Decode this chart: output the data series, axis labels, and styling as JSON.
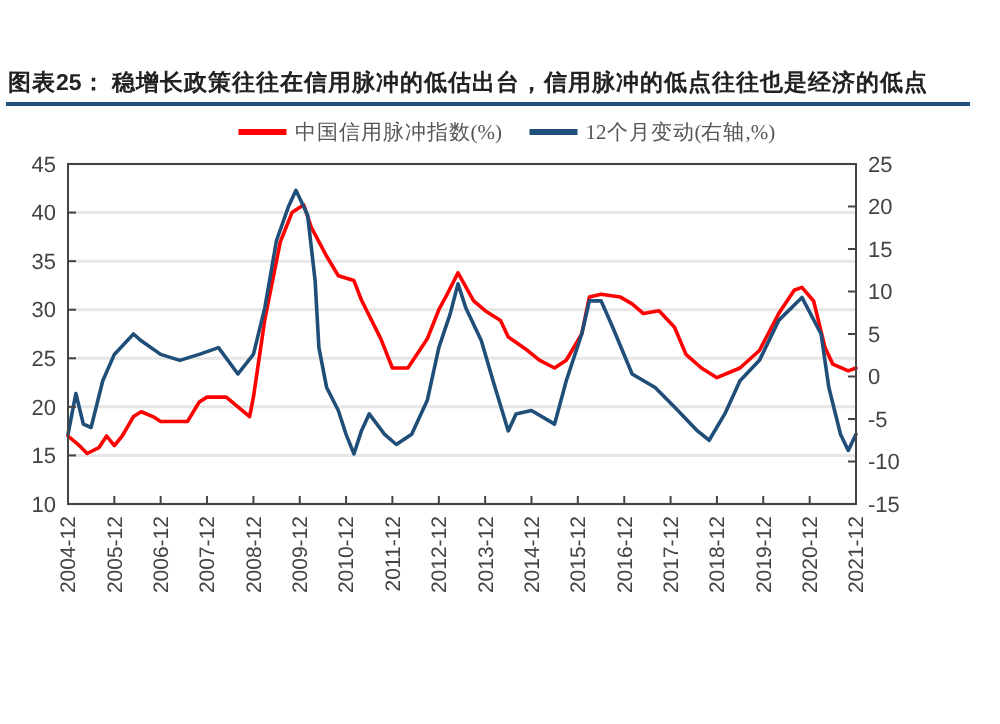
{
  "chart_data": {
    "type": "line",
    "title": "图表25： 稳增长政策往往在信用脉冲的低估出台，信用脉冲的低点往往也是经济的低点",
    "series": [
      {
        "name": "中国信用脉冲指数(%)",
        "color": "#ff0000",
        "x": [
          "2004-12",
          "2005-03",
          "2005-05",
          "2005-08",
          "2005-10",
          "2005-12",
          "2006-02",
          "2006-05",
          "2006-07",
          "2006-10",
          "2006-12",
          "2007-03",
          "2007-07",
          "2007-10",
          "2007-12",
          "2008-05",
          "2008-08",
          "2008-11",
          "2008-12",
          "2009-03",
          "2009-07",
          "2009-10",
          "2010-01",
          "2010-03",
          "2010-07",
          "2010-10",
          "2011-02",
          "2011-04",
          "2011-09",
          "2011-12",
          "2012-04",
          "2012-09",
          "2012-12",
          "2013-02",
          "2013-05",
          "2013-09",
          "2013-12",
          "2014-04",
          "2014-06",
          "2014-11",
          "2015-02",
          "2015-06",
          "2015-09",
          "2016-01",
          "2016-03",
          "2016-06",
          "2016-11",
          "2017-02",
          "2017-05",
          "2017-09",
          "2018-01",
          "2018-04",
          "2018-08",
          "2018-12",
          "2019-06",
          "2019-11",
          "2020-04",
          "2020-08",
          "2020-10",
          "2021-01",
          "2021-04",
          "2021-06",
          "2021-10",
          "2021-12"
        ],
        "values": [
          17,
          16,
          15.2,
          15.8,
          17,
          16,
          17,
          19,
          19.5,
          19,
          18.5,
          18.5,
          18.5,
          20.5,
          21,
          21,
          20,
          19,
          21,
          29,
          37,
          40,
          40.8,
          38.5,
          35.5,
          33.5,
          33,
          31,
          27,
          24,
          24,
          27,
          30,
          31.5,
          33.8,
          30.9,
          29.9,
          28.9,
          27.2,
          25.8,
          24.8,
          24,
          24.8,
          27.5,
          31.3,
          31.6,
          31.3,
          30.6,
          29.6,
          29.9,
          28.2,
          25.4,
          24,
          23,
          24,
          25.8,
          29.6,
          32,
          32.3,
          30.9,
          26.1,
          24.4,
          23.7,
          24
        ]
      },
      {
        "name": "12个月变动(右轴,%)",
        "color": "#1f4e79",
        "axis": "y2",
        "x": [
          "2004-12",
          "2005-02",
          "2005-04",
          "2005-06",
          "2005-09",
          "2005-12",
          "2006-05",
          "2006-07",
          "2006-12",
          "2007-05",
          "2007-10",
          "2008-03",
          "2008-08",
          "2008-12",
          "2009-03",
          "2009-06",
          "2009-09",
          "2009-11",
          "2010-02",
          "2010-04",
          "2010-05",
          "2010-07",
          "2010-10",
          "2010-12",
          "2011-02",
          "2011-04",
          "2011-06",
          "2011-10",
          "2012-01",
          "2012-05",
          "2012-09",
          "2012-12",
          "2013-03",
          "2013-05",
          "2013-07",
          "2013-11",
          "2014-02",
          "2014-06",
          "2014-08",
          "2014-12",
          "2015-06",
          "2015-09",
          "2016-01",
          "2016-03",
          "2016-06",
          "2016-09",
          "2017-02",
          "2017-08",
          "2018-01",
          "2018-07",
          "2018-10",
          "2019-02",
          "2019-06",
          "2019-11",
          "2020-04",
          "2020-10",
          "2021-03",
          "2021-05",
          "2021-08",
          "2021-10",
          "2021-12"
        ],
        "values": [
          -6.8,
          -2,
          -5.6,
          -6,
          -0.5,
          2.6,
          5,
          4.2,
          2.6,
          1.9,
          2.6,
          3.4,
          0.3,
          2.6,
          8.1,
          16,
          19.9,
          21.9,
          19,
          11.3,
          3.4,
          -1.3,
          -4,
          -6.8,
          -9.1,
          -6.4,
          -4.4,
          -6.8,
          -8,
          -6.8,
          -2.8,
          3.4,
          7.4,
          10.9,
          8.1,
          4.2,
          -0.5,
          -6.4,
          -4.4,
          -4,
          -5.6,
          -0.5,
          5,
          8.9,
          8.9,
          5.8,
          0.3,
          -1.3,
          -3.6,
          -6.4,
          -7.5,
          -4.4,
          -0.5,
          1.9,
          6.6,
          9.3,
          5,
          -1.3,
          -6.8,
          -8.7,
          -6.8
        ]
      }
    ],
    "xlim": [
      "2004-12",
      "2021-12"
    ],
    "xticks": [
      "2004-12",
      "2005-12",
      "2006-12",
      "2007-12",
      "2008-12",
      "2009-12",
      "2010-12",
      "2011-12",
      "2012-12",
      "2013-12",
      "2014-12",
      "2015-12",
      "2016-12",
      "2017-12",
      "2018-12",
      "2019-12",
      "2020-12",
      "2021-12"
    ],
    "ylim": [
      10,
      45
    ],
    "yticks": [
      10,
      15,
      20,
      25,
      30,
      35,
      40,
      45
    ],
    "y2lim": [
      -15,
      25
    ],
    "y2ticks": [
      -15,
      -10,
      -5,
      0,
      5,
      10,
      15,
      20,
      25
    ],
    "grid": "y",
    "legend": "top",
    "line_style": "solid",
    "marker": "none"
  }
}
